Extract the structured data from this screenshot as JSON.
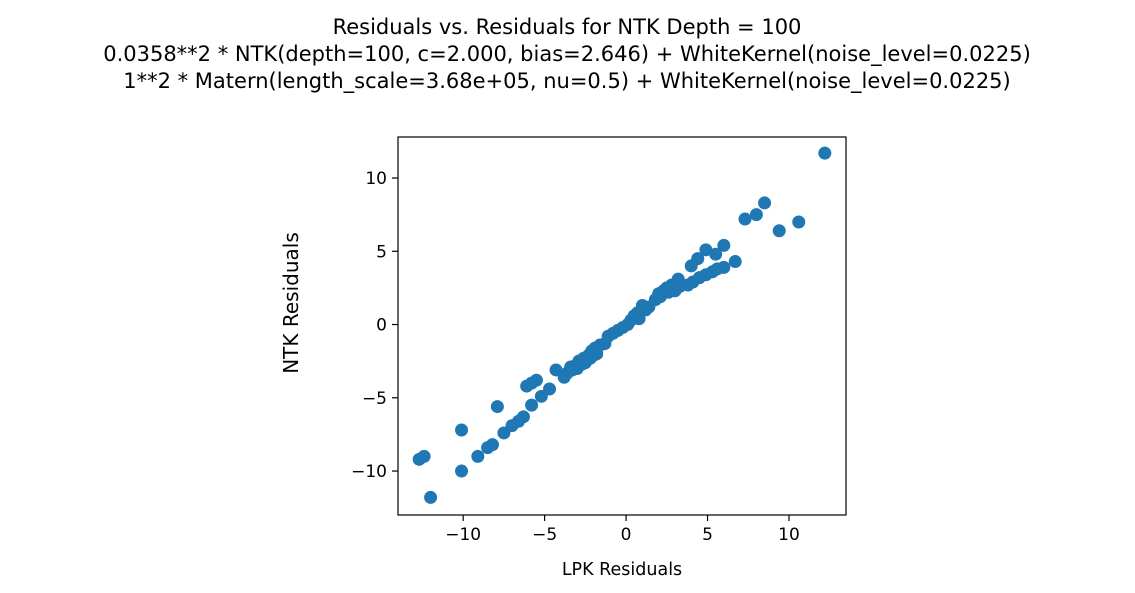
{
  "chart_data": {
    "type": "scatter",
    "title_lines": [
      "Residuals vs. Residuals for NTK Depth = 100",
      "0.0358**2 * NTK(depth=100, c=2.000, bias=2.646) + WhiteKernel(noise_level=0.0225)",
      "1**2 * Matern(length_scale=3.68e+05, nu=0.5) + WhiteKernel(noise_level=0.0225)"
    ],
    "xlabel": "LPK Residuals",
    "ylabel": "NTK Residuals",
    "xlim": [
      -14,
      13.5
    ],
    "ylim": [
      -13,
      12.8
    ],
    "xticks": [
      -10,
      -5,
      0,
      5,
      10
    ],
    "yticks": [
      -10,
      -5,
      0,
      5,
      10
    ],
    "xtick_labels": [
      "−10",
      "−5",
      "0",
      "5",
      "10"
    ],
    "ytick_labels": [
      "−10",
      "−5",
      "0",
      "5",
      "10"
    ],
    "grid": false,
    "marker_color": "#1f77b4",
    "series": [
      {
        "points": [
          [
            12.2,
            11.7
          ],
          [
            8.5,
            8.3
          ],
          [
            8.0,
            7.5
          ],
          [
            7.3,
            7.2
          ],
          [
            10.6,
            7.0
          ],
          [
            9.4,
            6.4
          ],
          [
            6.0,
            5.4
          ],
          [
            5.5,
            4.8
          ],
          [
            4.9,
            5.1
          ],
          [
            4.4,
            4.5
          ],
          [
            4.0,
            4.0
          ],
          [
            6.7,
            4.3
          ],
          [
            6.0,
            3.9
          ],
          [
            5.6,
            3.8
          ],
          [
            5.3,
            3.6
          ],
          [
            4.9,
            3.4
          ],
          [
            4.5,
            3.2
          ],
          [
            4.1,
            2.9
          ],
          [
            3.8,
            2.7
          ],
          [
            3.3,
            2.6
          ],
          [
            3.0,
            2.3
          ],
          [
            2.6,
            2.2
          ],
          [
            2.1,
            1.9
          ],
          [
            3.2,
            3.1
          ],
          [
            2.8,
            2.7
          ],
          [
            2.5,
            2.5
          ],
          [
            2.3,
            2.3
          ],
          [
            2.0,
            2.1
          ],
          [
            1.8,
            1.7
          ],
          [
            1.4,
            1.2
          ],
          [
            1.2,
            1.0
          ],
          [
            1.0,
            1.3
          ],
          [
            0.7,
            0.8
          ],
          [
            0.5,
            0.6
          ],
          [
            0.8,
            0.4
          ],
          [
            0.3,
            0.3
          ],
          [
            0.1,
            0.0
          ],
          [
            -0.2,
            -0.2
          ],
          [
            -0.5,
            -0.4
          ],
          [
            -0.8,
            -0.6
          ],
          [
            -1.1,
            -0.8
          ],
          [
            -1.3,
            -1.3
          ],
          [
            -1.6,
            -1.4
          ],
          [
            -1.9,
            -1.6
          ],
          [
            -2.1,
            -1.8
          ],
          [
            -1.8,
            -2.0
          ],
          [
            -2.3,
            -2.1
          ],
          [
            -2.6,
            -2.3
          ],
          [
            -2.9,
            -2.5
          ],
          [
            -3.1,
            -2.8
          ],
          [
            -3.4,
            -2.9
          ],
          [
            -3.6,
            -3.3
          ],
          [
            -3.3,
            -3.1
          ],
          [
            -3.0,
            -3.0
          ],
          [
            -2.7,
            -2.7
          ],
          [
            -2.5,
            -2.6
          ],
          [
            -2.2,
            -2.3
          ],
          [
            -2.0,
            -2.1
          ],
          [
            -3.8,
            -3.6
          ],
          [
            -4.3,
            -3.1
          ],
          [
            -4.7,
            -4.4
          ],
          [
            -5.2,
            -4.9
          ],
          [
            -5.5,
            -3.8
          ],
          [
            -5.8,
            -4.0
          ],
          [
            -6.1,
            -4.2
          ],
          [
            -5.8,
            -5.5
          ],
          [
            -6.3,
            -6.3
          ],
          [
            -6.6,
            -6.6
          ],
          [
            -7.0,
            -6.9
          ],
          [
            -7.5,
            -7.4
          ],
          [
            -7.9,
            -5.6
          ],
          [
            -8.2,
            -8.2
          ],
          [
            -8.5,
            -8.4
          ],
          [
            -9.1,
            -9.0
          ],
          [
            -10.1,
            -7.2
          ],
          [
            -10.1,
            -10.0
          ],
          [
            -12.4,
            -9.0
          ],
          [
            -12.7,
            -9.2
          ],
          [
            -12.0,
            -11.8
          ]
        ]
      }
    ]
  }
}
